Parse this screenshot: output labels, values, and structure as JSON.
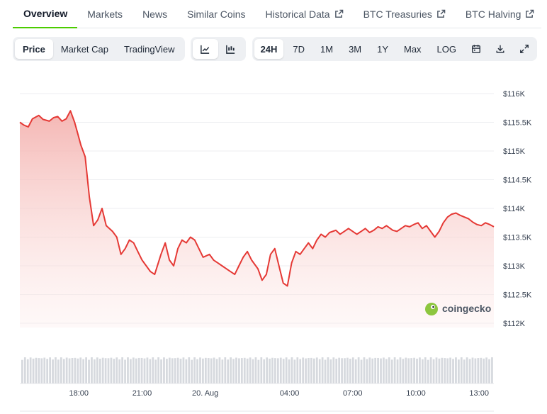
{
  "tabs": [
    {
      "label": "Overview",
      "active": true,
      "external": false
    },
    {
      "label": "Markets",
      "active": false,
      "external": false
    },
    {
      "label": "News",
      "active": false,
      "external": false
    },
    {
      "label": "Similar Coins",
      "active": false,
      "external": false
    },
    {
      "label": "Historical Data",
      "active": false,
      "external": true
    },
    {
      "label": "BTC Treasuries",
      "active": false,
      "external": true
    },
    {
      "label": "BTC Halving",
      "active": false,
      "external": true
    }
  ],
  "toolbar": {
    "view_modes": [
      {
        "label": "Price",
        "active": true
      },
      {
        "label": "Market Cap",
        "active": false
      },
      {
        "label": "TradingView",
        "active": false
      }
    ],
    "chart_types": [
      {
        "icon": "line-chart-icon",
        "active": true
      },
      {
        "icon": "candlestick-chart-icon",
        "active": false
      }
    ],
    "ranges": [
      {
        "label": "24H",
        "active": true
      },
      {
        "label": "7D",
        "active": false
      },
      {
        "label": "1M",
        "active": false
      },
      {
        "label": "3M",
        "active": false
      },
      {
        "label": "1Y",
        "active": false
      },
      {
        "label": "Max",
        "active": false
      },
      {
        "label": "LOG",
        "active": false
      }
    ],
    "actions": [
      {
        "icon": "calendar-icon"
      },
      {
        "icon": "download-icon"
      },
      {
        "icon": "expand-icon"
      }
    ]
  },
  "watermark": {
    "text": "coingecko"
  },
  "colors": {
    "line": "#e53935",
    "area_top": "#f4b3b0",
    "grid": "#eceef1",
    "volume": "#d6d9de",
    "accent": "#4bcc00"
  },
  "chart_data": {
    "type": "area",
    "title": "",
    "xlabel": "",
    "ylabel": "",
    "ylim": [
      112000,
      116000
    ],
    "y_ticks": [
      112000,
      112500,
      113000,
      113500,
      114000,
      114500,
      115000,
      115500,
      116000
    ],
    "y_tick_labels": [
      "$112K",
      "$112.5K",
      "$113K",
      "$113.5K",
      "$114K",
      "$114.5K",
      "$115K",
      "$115.5K",
      "$116K"
    ],
    "x_range_hours": [
      15.2,
      13.7
    ],
    "x_ticks": [
      {
        "label": "18:00",
        "hour": 18
      },
      {
        "label": "21:00",
        "hour": 21
      },
      {
        "label": "20. Aug",
        "hour": 24
      },
      {
        "label": "04:00",
        "hour": 28
      },
      {
        "label": "07:00",
        "hour": 31
      },
      {
        "label": "10:00",
        "hour": 34
      },
      {
        "label": "13:00",
        "hour": 37
      }
    ],
    "x_hours": [
      15.2,
      15.4,
      15.6,
      15.8,
      16.1,
      16.3,
      16.6,
      16.8,
      17.0,
      17.2,
      17.4,
      17.6,
      17.8,
      17.95,
      18.1,
      18.3,
      18.5,
      18.7,
      18.9,
      19.1,
      19.3,
      19.6,
      19.8,
      20.0,
      20.2,
      20.4,
      20.6,
      20.8,
      21.0,
      21.2,
      21.4,
      21.6,
      21.9,
      22.1,
      22.3,
      22.5,
      22.7,
      22.9,
      23.1,
      23.3,
      23.5,
      23.7,
      23.9,
      24.2,
      24.4,
      24.6,
      24.8,
      25.0,
      25.2,
      25.4,
      25.6,
      25.8,
      26.0,
      26.2,
      26.5,
      26.7,
      26.9,
      27.1,
      27.3,
      27.5,
      27.7,
      27.9,
      28.1,
      28.3,
      28.5,
      28.7,
      28.9,
      29.1,
      29.3,
      29.5,
      29.7,
      29.9,
      30.2,
      30.4,
      30.6,
      30.8,
      31.0,
      31.2,
      31.4,
      31.6,
      31.8,
      32.0,
      32.2,
      32.4,
      32.6,
      32.9,
      33.1,
      33.3,
      33.5,
      33.7,
      33.9,
      34.1,
      34.3,
      34.5,
      34.7,
      34.9,
      35.1,
      35.3,
      35.5,
      35.7,
      35.9,
      36.1,
      36.3,
      36.5,
      36.7,
      36.9,
      37.1,
      37.3,
      37.5,
      37.7
    ],
    "values": [
      115500,
      115450,
      115420,
      115560,
      115620,
      115550,
      115520,
      115580,
      115600,
      115520,
      115560,
      115700,
      115500,
      115300,
      115100,
      114900,
      114200,
      113700,
      113800,
      114000,
      113700,
      113600,
      113500,
      113200,
      113300,
      113450,
      113400,
      113250,
      113100,
      113000,
      112900,
      112850,
      113200,
      113400,
      113100,
      113000,
      113300,
      113450,
      113400,
      113500,
      113450,
      113300,
      113150,
      113200,
      113100,
      113050,
      113000,
      112950,
      112900,
      112850,
      113000,
      113150,
      113250,
      113100,
      112950,
      112750,
      112850,
      113200,
      113300,
      113000,
      112700,
      112650,
      113050,
      113250,
      113200,
      113300,
      113400,
      113300,
      113450,
      113550,
      113500,
      113580,
      113620,
      113550,
      113600,
      113650,
      113600,
      113550,
      113600,
      113650,
      113580,
      113620,
      113680,
      113650,
      113700,
      113620,
      113600,
      113650,
      113700,
      113680,
      113720,
      113750,
      113650,
      113700,
      113600,
      113500,
      113600,
      113750,
      113850,
      113900,
      113920,
      113880,
      113850,
      113820,
      113760,
      113720,
      113700,
      113750,
      113720,
      113680
    ],
    "volume_bars": 170,
    "grid": true,
    "legend": "none"
  }
}
